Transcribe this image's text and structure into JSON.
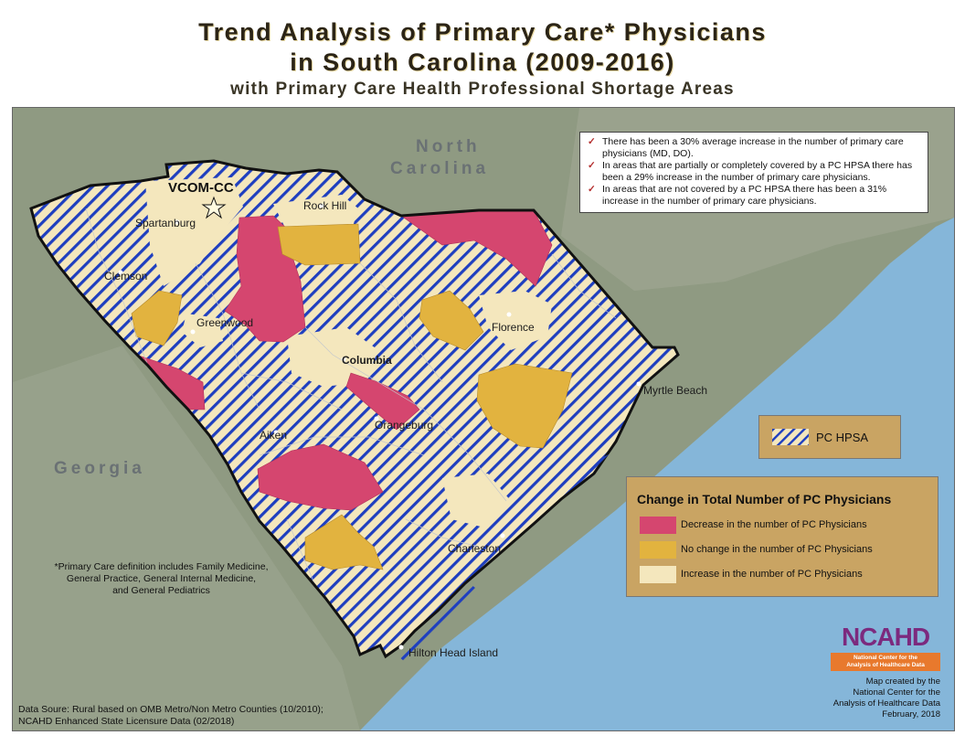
{
  "title": {
    "line1": "Trend Analysis of Primary Care* Physicians",
    "line2": "in South Carolina (2009-2016)",
    "subtitle": "with Primary Care Health Professional Shortage Areas"
  },
  "map": {
    "region_labels": {
      "north_carolina_1": "North",
      "north_carolina_2": "Carolina",
      "georgia": "Georgia"
    },
    "marker_label": "VCOM-CC",
    "marker_icon": "star-icon",
    "cities": {
      "spartanburg": "Spartanburg",
      "rock_hill": "Rock Hill",
      "clemson": "Clemson",
      "greenwood": "Greenwood",
      "florence": "Florence",
      "columbia": "Columbia",
      "myrtle_beach": "Myrtle Beach",
      "orangeburg": "Orangeburg",
      "aiken": "Aiken",
      "charleston": "Charleston",
      "hilton_head": "Hilton Head Island"
    },
    "colors": {
      "decrease": "#d5466f",
      "no_change": "#e2b33f",
      "increase": "#f4e7bd",
      "hpsa_hatch": "#1f3fbf",
      "ocean": "#85b6d9",
      "land": "#8f9a82",
      "legend_bg": "#c9a463"
    }
  },
  "notes": [
    "There has been a 30% average increase in the number of primary care physicians (MD, DO).",
    "In areas that are partially or completely covered by a PC HPSA there has been a 29% increase in the number of primary care physicians.",
    "In areas that are not covered by a PC HPSA there has been a 31% increase in the number of primary care physicians."
  ],
  "legend": {
    "hpsa_label": "PC HPSA",
    "title": "Change in Total Number of PC Physicians",
    "items": [
      {
        "label": "Decrease in the number of PC Physicians",
        "color": "#d5466f"
      },
      {
        "label": "No change in the number of PC Physicians",
        "color": "#e2b33f"
      },
      {
        "label": "Increase in the number of PC Physicians",
        "color": "#f4e7bd"
      }
    ]
  },
  "footnote": [
    "*Primary Care definition includes Family Medicine,",
    "General Practice, General Internal Medicine,",
    "and General Pediatrics"
  ],
  "sources": [
    "Data Soure: Rural based on OMB Metro/Non Metro Counties (10/2010);",
    "NCAHD Enhanced State Licensure Data (02/2018)"
  ],
  "logo": {
    "mark": "NCAHD",
    "band_line1": "National Center for the",
    "band_line2": "Analysis of Healthcare Data"
  },
  "credit": [
    "Map created by the",
    "National Center for the",
    "Analysis of Healthcare Data",
    "February, 2018"
  ]
}
